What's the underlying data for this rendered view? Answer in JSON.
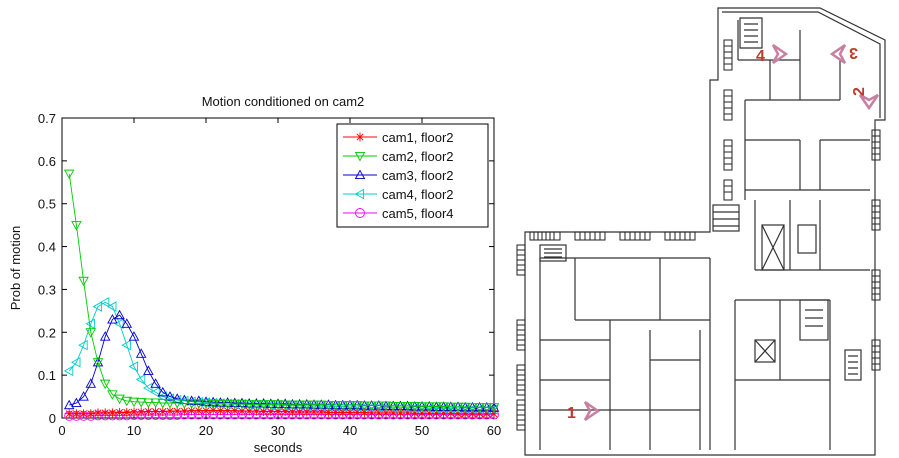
{
  "chart_data": {
    "type": "line",
    "title": "Motion conditioned on cam2",
    "xlabel": "seconds",
    "ylabel": "Prob of motion",
    "xlim": [
      0,
      60
    ],
    "ylim": [
      0,
      0.7
    ],
    "xticks": [
      0,
      10,
      20,
      30,
      40,
      50,
      60
    ],
    "yticks": [
      0,
      0.1,
      0.2,
      0.3,
      0.4,
      0.5,
      0.6,
      0.7
    ],
    "grid": false,
    "legend_position": "top-right",
    "x": [
      1,
      2,
      3,
      4,
      5,
      6,
      7,
      8,
      9,
      10,
      11,
      12,
      13,
      14,
      15,
      16,
      17,
      18,
      19,
      20,
      21,
      22,
      23,
      24,
      25,
      26,
      27,
      28,
      29,
      30,
      31,
      32,
      33,
      34,
      35,
      36,
      37,
      38,
      39,
      40,
      41,
      42,
      43,
      44,
      45,
      46,
      47,
      48,
      49,
      50,
      51,
      52,
      53,
      54,
      55,
      56,
      57,
      58,
      59,
      60
    ],
    "series": [
      {
        "name": "cam1, floor2",
        "color": "#ff0000",
        "marker": "star",
        "values": [
          0.01,
          0.01,
          0.01,
          0.01,
          0.012,
          0.012,
          0.012,
          0.013,
          0.013,
          0.014,
          0.014,
          0.015,
          0.015,
          0.015,
          0.016,
          0.016,
          0.016,
          0.017,
          0.017,
          0.017,
          0.018,
          0.017,
          0.017,
          0.017,
          0.016,
          0.016,
          0.016,
          0.015,
          0.015,
          0.015,
          0.015,
          0.014,
          0.014,
          0.014,
          0.014,
          0.014,
          0.013,
          0.013,
          0.013,
          0.013,
          0.013,
          0.013,
          0.012,
          0.012,
          0.012,
          0.012,
          0.012,
          0.012,
          0.011,
          0.011,
          0.011,
          0.011,
          0.011,
          0.011,
          0.01,
          0.01,
          0.01,
          0.01,
          0.01,
          0.01
        ]
      },
      {
        "name": "cam2, floor2",
        "color": "#00cc00",
        "marker": "triangle-down",
        "values": [
          0.57,
          0.45,
          0.32,
          0.2,
          0.13,
          0.08,
          0.055,
          0.045,
          0.04,
          0.038,
          0.037,
          0.036,
          0.036,
          0.035,
          0.035,
          0.035,
          0.034,
          0.034,
          0.034,
          0.034,
          0.033,
          0.033,
          0.033,
          0.033,
          0.033,
          0.032,
          0.032,
          0.032,
          0.032,
          0.032,
          0.031,
          0.031,
          0.031,
          0.031,
          0.031,
          0.031,
          0.03,
          0.03,
          0.03,
          0.03,
          0.03,
          0.029,
          0.029,
          0.029,
          0.029,
          0.028,
          0.028,
          0.028,
          0.028,
          0.027,
          0.027,
          0.027,
          0.027,
          0.026,
          0.026,
          0.026,
          0.025,
          0.025,
          0.025,
          0.025
        ]
      },
      {
        "name": "cam3, floor2",
        "color": "#0000cc",
        "marker": "triangle-up",
        "values": [
          0.03,
          0.035,
          0.05,
          0.08,
          0.13,
          0.19,
          0.23,
          0.24,
          0.22,
          0.19,
          0.15,
          0.11,
          0.08,
          0.06,
          0.05,
          0.045,
          0.042,
          0.04,
          0.04,
          0.038,
          0.037,
          0.036,
          0.036,
          0.035,
          0.035,
          0.034,
          0.034,
          0.034,
          0.033,
          0.033,
          0.033,
          0.032,
          0.032,
          0.032,
          0.031,
          0.031,
          0.031,
          0.03,
          0.03,
          0.03,
          0.03,
          0.029,
          0.029,
          0.029,
          0.028,
          0.028,
          0.028,
          0.028,
          0.027,
          0.027,
          0.027,
          0.026,
          0.026,
          0.026,
          0.026,
          0.025,
          0.025,
          0.025,
          0.025,
          0.024
        ]
      },
      {
        "name": "cam4, floor2",
        "color": "#00cccc",
        "marker": "triangle-left",
        "values": [
          0.11,
          0.13,
          0.17,
          0.22,
          0.26,
          0.27,
          0.26,
          0.22,
          0.17,
          0.12,
          0.09,
          0.07,
          0.06,
          0.05,
          0.045,
          0.042,
          0.04,
          0.038,
          0.037,
          0.036,
          0.035,
          0.034,
          0.033,
          0.032,
          0.032,
          0.031,
          0.031,
          0.03,
          0.03,
          0.03,
          0.029,
          0.029,
          0.029,
          0.028,
          0.028,
          0.028,
          0.027,
          0.027,
          0.027,
          0.026,
          0.026,
          0.026,
          0.025,
          0.025,
          0.025,
          0.024,
          0.024,
          0.024,
          0.023,
          0.023,
          0.023,
          0.022,
          0.022,
          0.022,
          0.021,
          0.021,
          0.021,
          0.02,
          0.02,
          0.02
        ]
      },
      {
        "name": "cam5, floor4",
        "color": "#ff00ff",
        "marker": "circle",
        "values": [
          0.005,
          0.005,
          0.005,
          0.005,
          0.006,
          0.006,
          0.006,
          0.006,
          0.006,
          0.007,
          0.007,
          0.007,
          0.007,
          0.007,
          0.007,
          0.007,
          0.008,
          0.008,
          0.008,
          0.008,
          0.008,
          0.008,
          0.008,
          0.008,
          0.008,
          0.008,
          0.008,
          0.008,
          0.008,
          0.008,
          0.008,
          0.008,
          0.008,
          0.008,
          0.008,
          0.008,
          0.008,
          0.008,
          0.008,
          0.008,
          0.008,
          0.008,
          0.008,
          0.008,
          0.008,
          0.008,
          0.008,
          0.008,
          0.008,
          0.008,
          0.008,
          0.008,
          0.008,
          0.008,
          0.008,
          0.008,
          0.008,
          0.008,
          0.008,
          0.008
        ]
      }
    ]
  },
  "floorplan": {
    "markers": [
      {
        "label": "1",
        "color": "#c0392b",
        "arrow_color": "#c87fa0"
      },
      {
        "label": "2",
        "color": "#c0392b",
        "arrow_color": "#c87fa0"
      },
      {
        "label": "3",
        "color": "#c0392b",
        "arrow_color": "#c87fa0"
      },
      {
        "label": "4",
        "color": "#c0392b",
        "arrow_color": "#c87fa0"
      }
    ]
  }
}
